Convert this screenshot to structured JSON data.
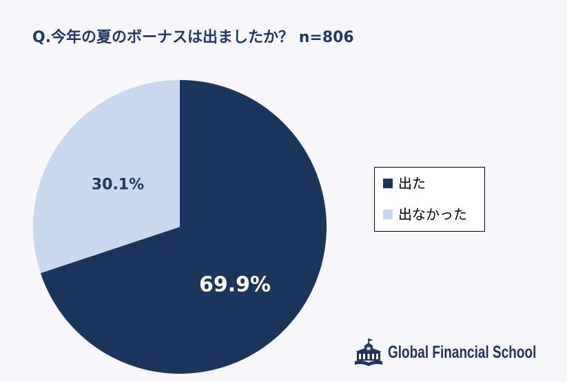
{
  "chart_data": {
    "type": "pie",
    "title": "Q.今年の夏のボーナスは出ましたか？ n=806",
    "categories": [
      "出た",
      "出なかった"
    ],
    "values": [
      69.9,
      30.1
    ],
    "labels": [
      "69.9%",
      "30.1%"
    ],
    "colors": [
      "#1b365d",
      "#c7d8ef"
    ],
    "legend_position": "right"
  },
  "logo": {
    "icon": "school-building-icon",
    "text": "Global Financial School"
  },
  "theme": {
    "background": "#f7f7fb",
    "title_color": "#1f3864",
    "label_colors": [
      "#ffffff",
      "#1f3864"
    ]
  }
}
